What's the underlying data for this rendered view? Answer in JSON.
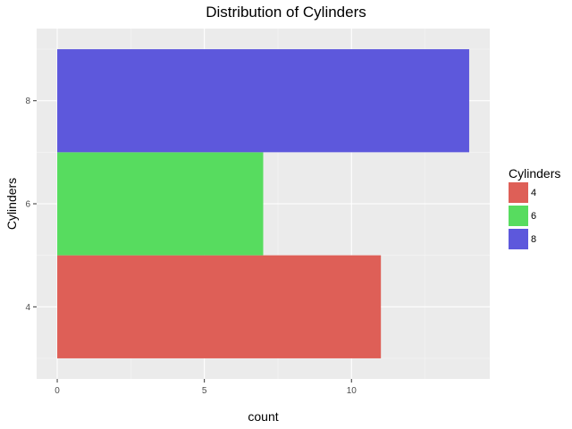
{
  "chart_data": {
    "type": "bar",
    "orientation": "horizontal",
    "title": "Distribution of Cylinders",
    "xlabel": "count",
    "ylabel": "Cylinders",
    "categories": [
      "4",
      "6",
      "8"
    ],
    "y_positions": [
      4,
      6,
      8
    ],
    "values": [
      11,
      7,
      14
    ],
    "colors": [
      "#DE5F57",
      "#57DC5F",
      "#5D58DC"
    ],
    "xlim": [
      -0.7,
      14.7
    ],
    "ylim": [
      2.6,
      9.4
    ],
    "x_ticks": [
      0,
      5,
      10
    ],
    "y_ticks": [
      4,
      6,
      8
    ],
    "panel_background": "#EBEBEB",
    "grid": true,
    "legend": {
      "title": "Cylinders",
      "position": "right",
      "items": [
        {
          "label": "4",
          "color": "#DE5F57"
        },
        {
          "label": "6",
          "color": "#57DC5F"
        },
        {
          "label": "8",
          "color": "#5D58DC"
        }
      ]
    }
  }
}
